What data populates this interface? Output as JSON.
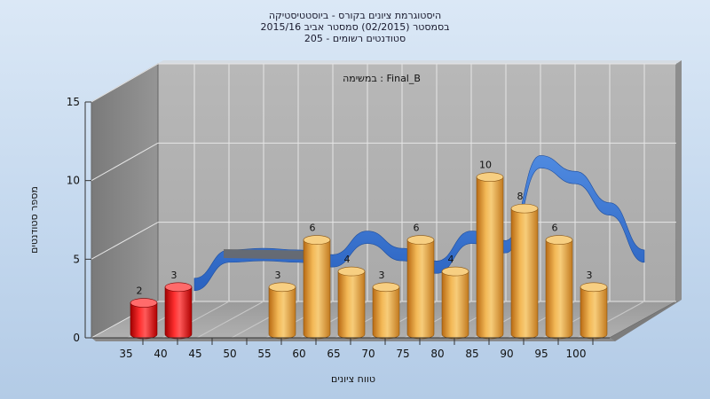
{
  "chart_data": {
    "type": "bar",
    "title": [
      "היסטוגרמת ציונים בקורס - ביוסטטיסטיקה",
      "בסמסטר (02/2015) סמסטר אביב 2015/16",
      "סטודנטים רשומים - 205"
    ],
    "annotation": "במשימה : Final_B",
    "xlabel": "טווח ציונים",
    "ylabel": "מספר סטודנטים",
    "categories": [
      "35",
      "40",
      "45",
      "50",
      "55",
      "60",
      "65",
      "70",
      "75",
      "80",
      "85",
      "90",
      "95",
      "100"
    ],
    "values": [
      2,
      3,
      0,
      0,
      3,
      6,
      4,
      3,
      6,
      4,
      10,
      8,
      6,
      3
    ],
    "ylim": [
      0,
      15
    ],
    "yticks": [
      0,
      5,
      10,
      15
    ],
    "grid": true,
    "failing_color": "#e01010",
    "passing_color": "#e9a030",
    "curve_color": "#2f6fcf",
    "failing_threshold": 45,
    "curve": [
      {
        "x": "40",
        "y": 3
      },
      {
        "x": "45",
        "y": 4.8
      },
      {
        "x": "50",
        "y": 4.9
      },
      {
        "x": "55",
        "y": 4.8
      },
      {
        "x": "60",
        "y": 4.5
      },
      {
        "x": "65",
        "y": 6.0
      },
      {
        "x": "70",
        "y": 4.9
      },
      {
        "x": "75",
        "y": 4.1
      },
      {
        "x": "80",
        "y": 6.0
      },
      {
        "x": "85",
        "y": 5.4
      },
      {
        "x": "90",
        "y": 10.8
      },
      {
        "x": "95",
        "y": 9.8
      },
      {
        "x": "100",
        "y": 7.8
      },
      {
        "x": "105",
        "y": 4.8
      }
    ]
  }
}
